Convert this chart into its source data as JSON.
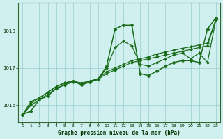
{
  "bg_color": "#cff0ee",
  "plot_bg_color": "#cff0ee",
  "grid_color": "#99cccc",
  "line_color": "#1a6b1a",
  "marker_color": "#1a6b1a",
  "title": "Graphe pression niveau de la mer (hPa)",
  "xlim": [
    -0.5,
    23.5
  ],
  "ylim": [
    1015.55,
    1018.75
  ],
  "xticks": [
    0,
    1,
    2,
    3,
    4,
    5,
    6,
    7,
    8,
    9,
    10,
    11,
    12,
    13,
    14,
    15,
    16,
    17,
    18,
    19,
    20,
    21,
    22,
    23
  ],
  "yticks": [
    1016,
    1017,
    1018
  ],
  "series": [
    {
      "x": [
        0,
        1,
        2,
        3,
        4,
        5,
        6,
        7,
        8,
        9,
        10,
        11,
        12,
        13,
        14,
        15,
        16,
        17,
        18,
        19,
        20,
        21,
        22,
        23
      ],
      "y": [
        1015.75,
        1016.05,
        1016.2,
        1016.35,
        1016.5,
        1016.6,
        1016.65,
        1016.6,
        1016.65,
        1016.7,
        1016.85,
        1016.95,
        1017.05,
        1017.15,
        1017.2,
        1017.25,
        1017.3,
        1017.35,
        1017.4,
        1017.45,
        1017.5,
        1017.55,
        1017.6,
        1018.3
      ],
      "marker": "D",
      "markersize": 2.0,
      "linewidth": 0.9,
      "zorder": 2
    },
    {
      "x": [
        0,
        1,
        2,
        3,
        4,
        5,
        6,
        7,
        8,
        9,
        10,
        11,
        12,
        13,
        14,
        15,
        16,
        17,
        18,
        19,
        20,
        21,
        22,
        23
      ],
      "y": [
        1015.75,
        1016.0,
        1016.15,
        1016.3,
        1016.45,
        1016.55,
        1016.62,
        1016.58,
        1016.65,
        1016.72,
        1016.9,
        1017.0,
        1017.1,
        1017.2,
        1017.25,
        1017.3,
        1017.38,
        1017.43,
        1017.48,
        1017.53,
        1017.57,
        1017.62,
        1017.67,
        1018.3
      ],
      "marker": "D",
      "markersize": 2.0,
      "linewidth": 0.9,
      "zorder": 2
    },
    {
      "x": [
        0,
        1,
        2,
        3,
        4,
        5,
        6,
        7,
        8,
        9,
        10,
        11,
        12,
        13,
        14,
        15,
        16,
        17,
        18,
        19,
        20,
        21,
        22,
        23
      ],
      "y": [
        1015.75,
        1016.1,
        1016.2,
        1016.35,
        1016.5,
        1016.6,
        1016.65,
        1016.55,
        1016.62,
        1016.7,
        1017.0,
        1017.55,
        1017.72,
        1017.6,
        1017.1,
        1017.05,
        1017.15,
        1017.25,
        1017.35,
        1017.4,
        1017.25,
        1017.4,
        1017.15,
        1018.3
      ],
      "marker": "D",
      "markersize": 2.0,
      "linewidth": 0.9,
      "zorder": 3
    },
    {
      "x": [
        0,
        1,
        2,
        3,
        4,
        5,
        6,
        7,
        8,
        9,
        10,
        11,
        12,
        13,
        14,
        15,
        16,
        17,
        18,
        19,
        20,
        21,
        22,
        23
      ],
      "y": [
        1015.75,
        1015.85,
        1016.15,
        1016.25,
        1016.45,
        1016.55,
        1016.65,
        1016.55,
        1016.62,
        1016.7,
        1017.05,
        1018.05,
        1018.15,
        1018.15,
        1016.85,
        1016.8,
        1016.92,
        1017.05,
        1017.15,
        1017.2,
        1017.2,
        1017.15,
        1018.05,
        1018.35
      ],
      "marker": "D",
      "markersize": 2.5,
      "linewidth": 1.1,
      "zorder": 4
    }
  ]
}
